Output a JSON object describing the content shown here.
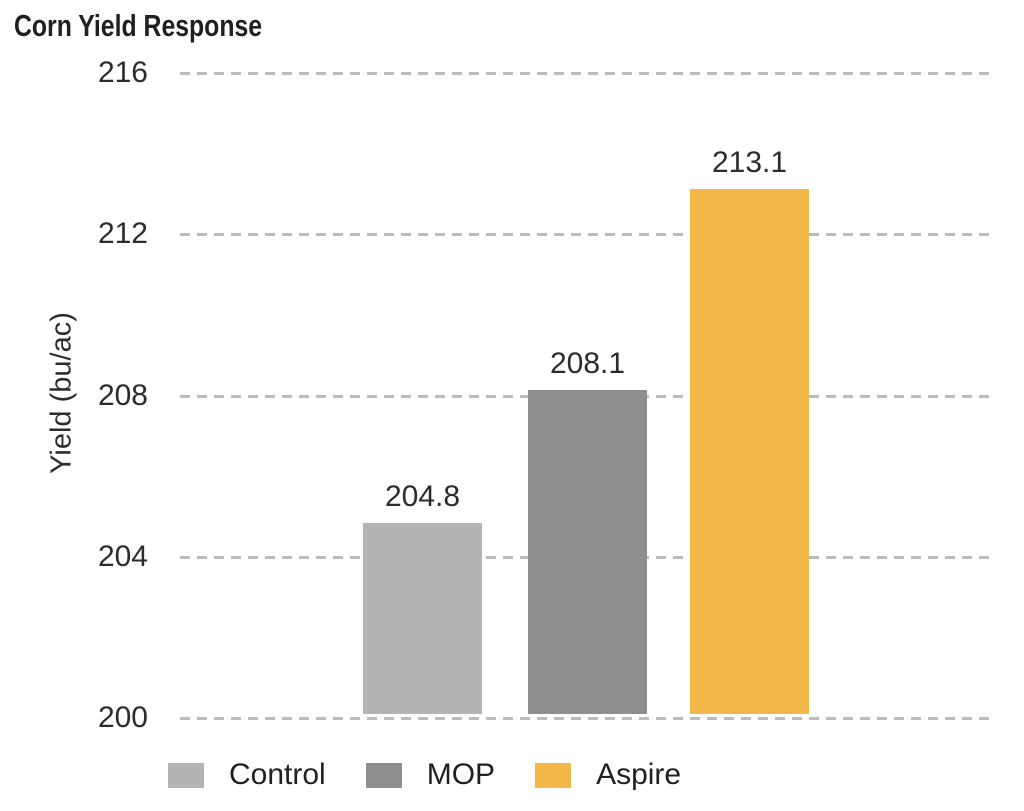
{
  "chart_data": {
    "type": "bar",
    "title": "Corn Yield Response",
    "ylabel": "Yield (bu/ac)",
    "xlabel": "",
    "categories": [
      "Control",
      "MOP",
      "Aspire"
    ],
    "values": [
      204.8,
      208.1,
      213.1
    ],
    "bar_colors": [
      "#b4b4b3",
      "#8e8e8e",
      "#f2b746"
    ],
    "yticks_top_to_bottom": [
      216,
      212,
      208,
      204,
      200
    ],
    "ylim": [
      200,
      216
    ],
    "grid": "horizontal-dashed",
    "gridline_color": "#bcbcbc",
    "text_color": "#2e2c2b",
    "title_color": "#231f20",
    "legend_position": "bottom"
  }
}
